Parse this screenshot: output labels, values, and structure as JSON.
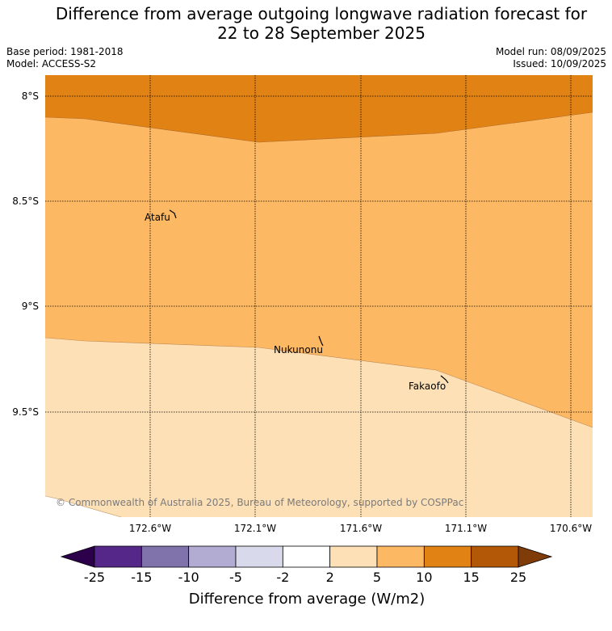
{
  "title_line1": "Difference from average outgoing longwave radiation forecast for",
  "title_line2": "22 to 28 September 2025",
  "meta_left": {
    "base_period": "Base period: 1981-2018",
    "model": "Model: ACCESS-S2"
  },
  "meta_right": {
    "model_run": "Model run: 08/09/2025",
    "issued": "Issued: 10/09/2025"
  },
  "lat_labels": [
    "8°S",
    "8.5°S",
    "9°S",
    "9.5°S"
  ],
  "lon_labels": [
    "172.6°W",
    "172.1°W",
    "171.6°W",
    "171.1°W",
    "170.6°W"
  ],
  "places": [
    "Atafu",
    "Nukunonu",
    "Fakaofo"
  ],
  "copyright": "© Commonwealth of Australia 2025, Bureau of Meteorology, supported by COSPPac",
  "colorbar": {
    "ticks": [
      "-25",
      "-15",
      "-10",
      "-5",
      "-2",
      "2",
      "5",
      "10",
      "15",
      "25"
    ],
    "colors": [
      "#2d004b",
      "#542788",
      "#8073ac",
      "#b2abd2",
      "#d8daeb",
      "#ffffff",
      "#fee0b6",
      "#fdb863",
      "#e08214",
      "#b35806",
      "#7f3b08"
    ],
    "label": "Difference from average (W/m2)"
  },
  "field_colors": {
    "band_10_15": "#e08214",
    "band_5_10": "#fdb863",
    "band_2_5": "#fee0b6"
  }
}
